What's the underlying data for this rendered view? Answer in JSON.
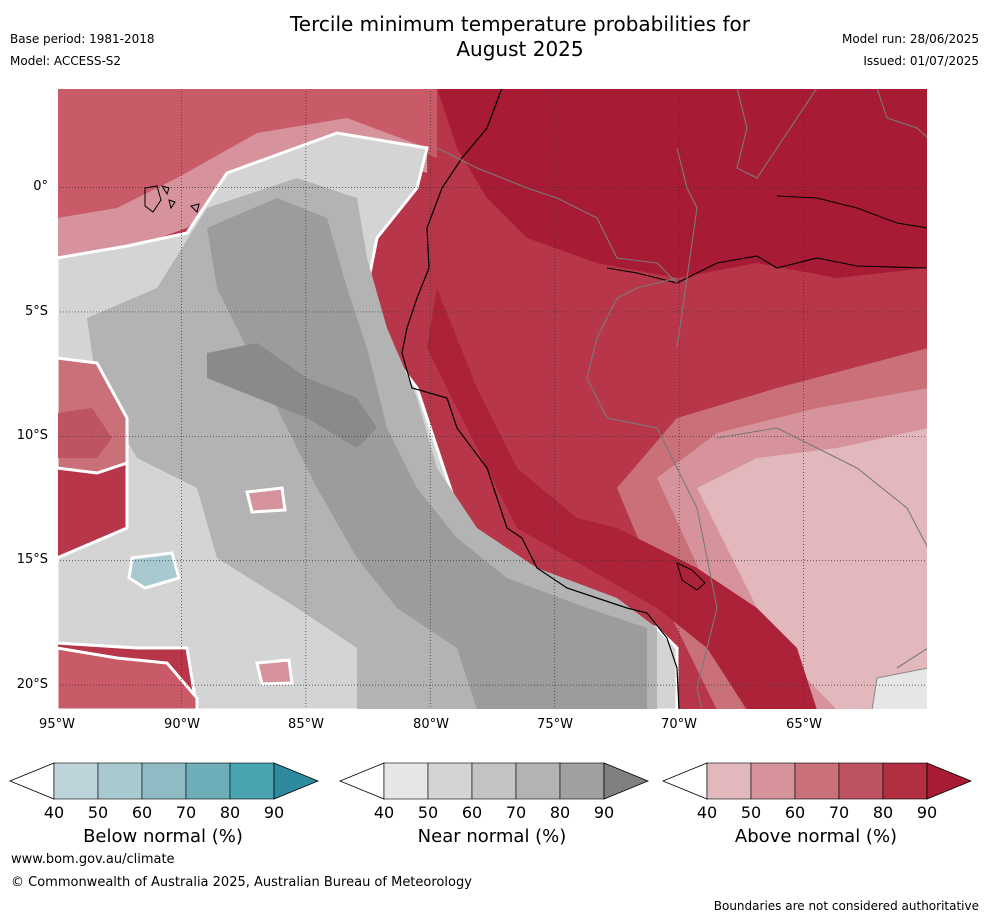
{
  "header": {
    "title_line1": "Tercile minimum temperature probabilities for",
    "title_line2": "August 2025",
    "base_period": "Base period: 1981-2018",
    "model": "Model: ACCESS-S2",
    "model_run": "Model run: 28/06/2025",
    "issued": "Issued: 01/07/2025"
  },
  "map": {
    "lat_labels": [
      "0°",
      "5°S",
      "10°S",
      "15°S",
      "20°S"
    ],
    "lon_labels": [
      "95°W",
      "90°W",
      "85°W",
      "80°W",
      "75°W",
      "70°W",
      "65°W"
    ],
    "lat_values": [
      0,
      -5,
      -10,
      -15,
      -20
    ],
    "lon_values": [
      -95,
      -90,
      -85,
      -80,
      -75,
      -70,
      -65
    ],
    "extent": {
      "lon_min": -95,
      "lon_max": -60,
      "lat_min": -21,
      "lat_max": 4
    }
  },
  "colorbars": [
    {
      "name": "Below normal (%)",
      "ticks": [
        "40",
        "50",
        "60",
        "70",
        "80",
        "90"
      ],
      "colors": [
        "#ffffff",
        "#bdd5da",
        "#a8c9cf",
        "#8ebbc4",
        "#6daeb9",
        "#4aa3b1",
        "#2e8a9e"
      ]
    },
    {
      "name": "Near normal (%)",
      "ticks": [
        "40",
        "50",
        "60",
        "70",
        "80",
        "90"
      ],
      "colors": [
        "#ffffff",
        "#e6e6e6",
        "#d4d4d4",
        "#c3c3c3",
        "#b3b3b3",
        "#a0a0a0",
        "#808080"
      ]
    },
    {
      "name": "Above normal (%)",
      "ticks": [
        "40",
        "50",
        "60",
        "70",
        "80",
        "90"
      ],
      "colors": [
        "#ffffff",
        "#e2b8bd",
        "#d6939b",
        "#c97079",
        "#be5461",
        "#b22f41",
        "#a81b35"
      ]
    }
  ],
  "footer": {
    "website": "www.bom.gov.au/climate",
    "copyright": "© Commonwealth of Australia 2025, Australian Bureau of Meteorology",
    "disclaimer": "Boundaries are not considered authoritative"
  }
}
